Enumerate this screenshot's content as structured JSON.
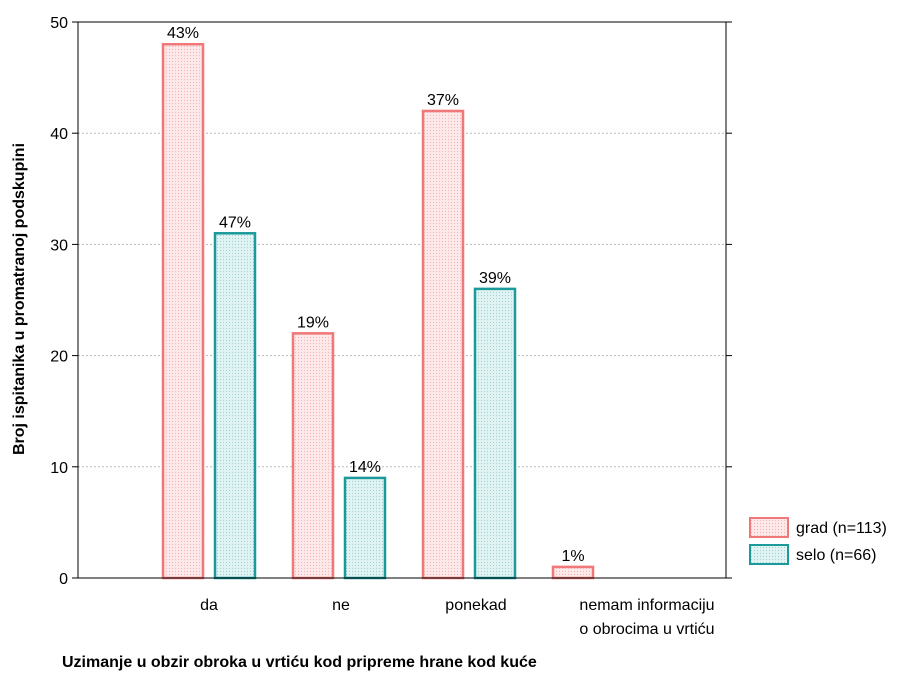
{
  "chart_data": {
    "type": "bar",
    "title": "",
    "xlabel": "Uzimanje u obzir obroka u vrtiću kod pripreme hrane kod kuće",
    "ylabel": "Broj ispitanika u promatranoj podskupini",
    "ylim": [
      0,
      50
    ],
    "yticks": [
      0,
      10,
      20,
      30,
      40,
      50
    ],
    "grid": true,
    "legend_position": "right",
    "categories": [
      [
        "da"
      ],
      [
        "ne"
      ],
      [
        "ponekad"
      ],
      [
        "nemam informaciju",
        "o obrocima u vrtiću"
      ]
    ],
    "series": [
      {
        "name": "grad (n=113)",
        "values": [
          48,
          22,
          42,
          1
        ],
        "labels": [
          "43%",
          "19%",
          "37%",
          "1%"
        ],
        "stroke": "#f07878",
        "fill": "#fce8e8"
      },
      {
        "name": "selo (n=66)",
        "values": [
          31,
          9,
          26,
          0
        ],
        "labels": [
          "47%",
          "14%",
          "39%",
          ""
        ],
        "stroke": "#1a9a9a",
        "fill": "#dff1f1"
      }
    ]
  }
}
